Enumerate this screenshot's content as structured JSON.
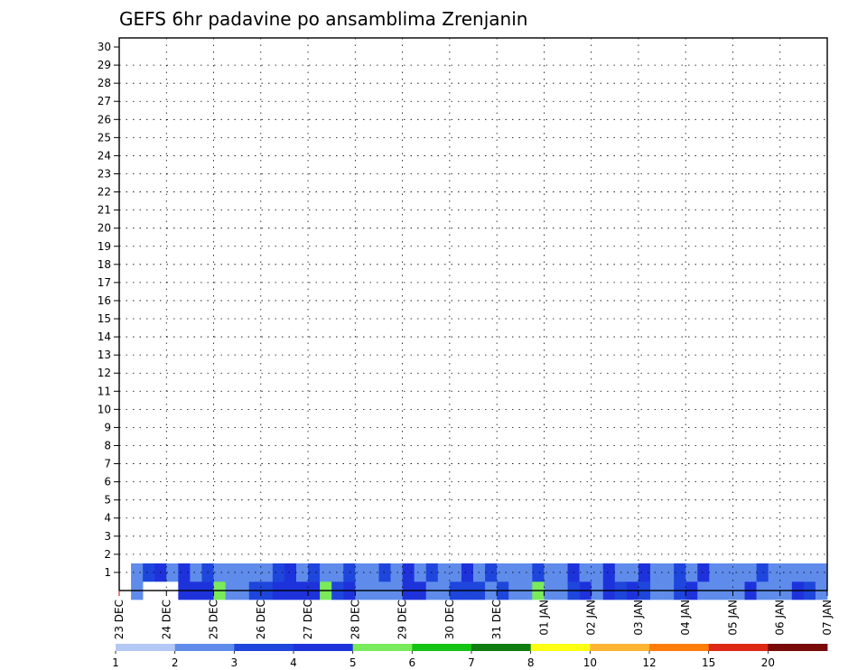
{
  "chart_data": {
    "type": "heatmap",
    "title": "GEFS 6hr padavine po ansamblima Zrenjanin",
    "xlabel": "",
    "ylabel": "",
    "x_ticks": [
      "23 DEC",
      "24 DEC",
      "25 DEC",
      "26 DEC",
      "27 DEC",
      "28 DEC",
      "29 DEC",
      "30 DEC",
      "31 DEC",
      "01 JAN",
      "02 JAN",
      "03 JAN",
      "04 JAN",
      "05 JAN",
      "06 JAN",
      "07 JAN"
    ],
    "y_ticks": [
      1,
      2,
      3,
      4,
      5,
      6,
      7,
      8,
      9,
      10,
      11,
      12,
      13,
      14,
      15,
      16,
      17,
      18,
      19,
      20,
      21,
      22,
      23,
      24,
      25,
      26,
      27,
      28,
      29,
      30
    ],
    "xlim": [
      0,
      60
    ],
    "ylim": [
      0,
      30
    ],
    "steps_per_day": 4,
    "grid": true,
    "legend": "bottom",
    "colorbar": {
      "labels": [
        "1",
        "2",
        "3",
        "4",
        "5",
        "6",
        "7",
        "8",
        "10",
        "12",
        "15",
        "20"
      ],
      "colors": [
        "#b4c8f5",
        "#5f8ceb",
        "#1e46dc",
        "#1e32dc",
        "#7aeb5a",
        "#14c314",
        "#0f7d0f",
        "#ffff14",
        "#ffb432",
        "#ff7d0a",
        "#dc2814",
        "#780a0a"
      ]
    },
    "cells": [
      [
        1,
        0,
        1
      ],
      [
        3,
        0,
        5
      ],
      [
        3,
        0,
        6
      ],
      [
        3,
        0,
        7
      ],
      [
        4,
        0,
        8
      ],
      [
        1,
        0,
        9
      ],
      [
        1,
        0,
        10
      ],
      [
        2,
        0,
        11
      ],
      [
        2,
        0,
        12
      ],
      [
        3,
        0,
        13
      ],
      [
        3,
        0,
        14
      ],
      [
        3,
        0,
        15
      ],
      [
        3,
        0,
        16
      ],
      [
        4,
        0,
        17
      ],
      [
        2,
        0,
        18
      ],
      [
        3,
        0,
        19
      ],
      [
        1,
        0,
        20
      ],
      [
        1,
        0,
        21
      ],
      [
        1,
        0,
        22
      ],
      [
        1,
        0,
        23
      ],
      [
        3,
        0,
        24
      ],
      [
        3,
        0,
        25
      ],
      [
        1,
        0,
        26
      ],
      [
        1,
        0,
        27
      ],
      [
        2,
        0,
        28
      ],
      [
        2,
        0,
        29
      ],
      [
        2,
        0,
        30
      ],
      [
        1,
        0,
        31
      ],
      [
        2,
        0,
        32
      ],
      [
        1,
        0,
        33
      ],
      [
        1,
        0,
        34
      ],
      [
        4,
        0,
        35
      ],
      [
        1,
        0,
        36
      ],
      [
        1,
        0,
        37
      ],
      [
        2,
        0,
        38
      ],
      [
        3,
        0,
        39
      ],
      [
        1,
        0,
        40
      ],
      [
        3,
        0,
        41
      ],
      [
        2,
        0,
        42
      ],
      [
        3,
        0,
        43
      ],
      [
        2,
        0,
        44
      ],
      [
        1,
        0,
        45
      ],
      [
        1,
        0,
        46
      ],
      [
        2,
        0,
        47
      ],
      [
        3,
        0,
        48
      ],
      [
        1,
        0,
        49
      ],
      [
        1,
        0,
        50
      ],
      [
        1,
        0,
        51
      ],
      [
        1,
        0,
        52
      ],
      [
        3,
        0,
        53
      ],
      [
        1,
        0,
        54
      ],
      [
        1,
        0,
        55
      ],
      [
        1,
        0,
        56
      ],
      [
        3,
        0,
        57
      ],
      [
        2,
        0,
        58
      ],
      [
        1,
        0,
        59
      ],
      [
        1,
        1,
        1
      ],
      [
        2,
        1,
        2
      ],
      [
        3,
        1,
        3
      ],
      [
        1,
        1,
        4
      ],
      [
        3,
        1,
        5
      ],
      [
        1,
        1,
        6
      ],
      [
        2,
        1,
        7
      ],
      [
        1,
        1,
        8
      ],
      [
        1,
        1,
        9
      ],
      [
        1,
        1,
        10
      ],
      [
        1,
        1,
        11
      ],
      [
        1,
        1,
        12
      ],
      [
        2,
        1,
        13
      ],
      [
        3,
        1,
        14
      ],
      [
        1,
        1,
        15
      ],
      [
        2,
        1,
        16
      ],
      [
        1,
        1,
        17
      ],
      [
        1,
        1,
        18
      ],
      [
        2,
        1,
        19
      ],
      [
        1,
        1,
        20
      ],
      [
        1,
        1,
        21
      ],
      [
        2,
        1,
        22
      ],
      [
        1,
        1,
        23
      ],
      [
        3,
        1,
        24
      ],
      [
        1,
        1,
        25
      ],
      [
        2,
        1,
        26
      ],
      [
        1,
        1,
        27
      ],
      [
        1,
        1,
        28
      ],
      [
        3,
        1,
        29
      ],
      [
        1,
        1,
        30
      ],
      [
        2,
        1,
        31
      ],
      [
        1,
        1,
        32
      ],
      [
        1,
        1,
        33
      ],
      [
        1,
        1,
        34
      ],
      [
        2,
        1,
        35
      ],
      [
        1,
        1,
        36
      ],
      [
        1,
        1,
        37
      ],
      [
        3,
        1,
        38
      ],
      [
        1,
        1,
        39
      ],
      [
        1,
        1,
        40
      ],
      [
        3,
        1,
        41
      ],
      [
        1,
        1,
        42
      ],
      [
        1,
        1,
        43
      ],
      [
        3,
        1,
        44
      ],
      [
        1,
        1,
        45
      ],
      [
        1,
        1,
        46
      ],
      [
        2,
        1,
        47
      ],
      [
        1,
        1,
        48
      ],
      [
        3,
        1,
        49
      ],
      [
        1,
        1,
        50
      ],
      [
        1,
        1,
        51
      ],
      [
        1,
        1,
        52
      ],
      [
        1,
        1,
        53
      ],
      [
        2,
        1,
        54
      ],
      [
        1,
        1,
        55
      ],
      [
        1,
        1,
        56
      ],
      [
        1,
        1,
        57
      ],
      [
        1,
        1,
        58
      ],
      [
        1,
        1,
        59
      ]
    ]
  }
}
